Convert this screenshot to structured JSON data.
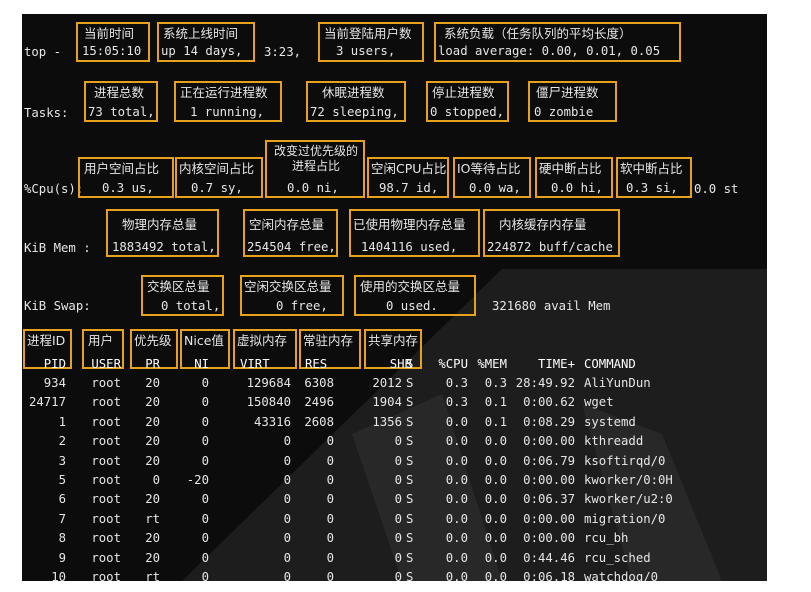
{
  "terminal": {
    "lines": {
      "top": [
        "top -",
        "15:05:10",
        "up 14 days,",
        "3:23,",
        "3 users,",
        "load average: 0.00, 0.01, 0.05"
      ],
      "tasks": [
        "Tasks:",
        "73 total,",
        "1 running,",
        "72 sleeping,",
        "0 stopped,",
        "0 zombie"
      ],
      "cpu": [
        "%Cpu(s):",
        "0.3 us,",
        "0.7 sy,",
        "0.0 ni,",
        "98.7 id,",
        "0.0 wa,",
        "0.0 hi,",
        "0.3 si,",
        "0.0 st"
      ],
      "mem": [
        "KiB Mem :",
        "1883492 total,",
        "254504 free,",
        "1404116 used,",
        "224872 buff/cache"
      ],
      "swap": [
        "KiB Swap:",
        "0 total,",
        "0 free,",
        "0 used.",
        "321680 avail Mem"
      ]
    },
    "annotations": {
      "current_time": "当前时间",
      "uptime": "系统上线时间",
      "users": "当前登陆用户数",
      "load": "系统负载（任务队列的平均长度）",
      "total_proc": "进程总数",
      "running_proc": "正在运行进程数",
      "sleeping_proc": "休眠进程数",
      "stopped_proc": "停止进程数",
      "zombie_proc": "僵尸进程数",
      "us": "用户空间占比",
      "sy": "内核空间占比",
      "ni": "改变过优先级的\n进程占比",
      "id": "空闲CPU占比",
      "wa": "IO等待占比",
      "hi": "硬中断占比",
      "si": "软中断占比",
      "mem_total": "物理内存总量",
      "mem_free": "空闲内存总量",
      "mem_used": "已使用物理内存总量",
      "mem_buff": "内核缓存内存量",
      "swap_total": "交换区总量",
      "swap_free": "空闲交换区总量",
      "swap_used": "使用的交换区总量",
      "col_pid": "进程ID",
      "col_user": "用户",
      "col_pr": "优先级",
      "col_ni": "Nice值",
      "col_virt": "虚拟内存",
      "col_res": "常驻内存",
      "col_shr": "共享内存"
    },
    "table": {
      "headers": [
        "PID",
        "USER",
        "PR",
        "NI",
        "VIRT",
        "RES",
        "SHR",
        "S",
        "%CPU",
        "%MEM",
        "TIME+",
        "COMMAND"
      ],
      "rows": [
        [
          "934",
          "root",
          "20",
          "0",
          "129684",
          "6308",
          "2012",
          "S",
          "0.3",
          "0.3",
          "28:49.92",
          "AliYunDun"
        ],
        [
          "24717",
          "root",
          "20",
          "0",
          "150840",
          "2496",
          "1904",
          "S",
          "0.3",
          "0.1",
          "0:00.62",
          "wget"
        ],
        [
          "1",
          "root",
          "20",
          "0",
          "43316",
          "2608",
          "1356",
          "S",
          "0.0",
          "0.1",
          "0:08.29",
          "systemd"
        ],
        [
          "2",
          "root",
          "20",
          "0",
          "0",
          "0",
          "0",
          "S",
          "0.0",
          "0.0",
          "0:00.00",
          "kthreadd"
        ],
        [
          "3",
          "root",
          "20",
          "0",
          "0",
          "0",
          "0",
          "S",
          "0.0",
          "0.0",
          "0:06.79",
          "ksoftirqd/0"
        ],
        [
          "5",
          "root",
          "0",
          "-20",
          "0",
          "0",
          "0",
          "S",
          "0.0",
          "0.0",
          "0:00.00",
          "kworker/0:0H"
        ],
        [
          "6",
          "root",
          "20",
          "0",
          "0",
          "0",
          "0",
          "S",
          "0.0",
          "0.0",
          "0:06.37",
          "kworker/u2:0"
        ],
        [
          "7",
          "root",
          "rt",
          "0",
          "0",
          "0",
          "0",
          "S",
          "0.0",
          "0.0",
          "0:00.00",
          "migration/0"
        ],
        [
          "8",
          "root",
          "20",
          "0",
          "0",
          "0",
          "0",
          "S",
          "0.0",
          "0.0",
          "0:00.00",
          "rcu_bh"
        ],
        [
          "9",
          "root",
          "20",
          "0",
          "0",
          "0",
          "0",
          "S",
          "0.0",
          "0.0",
          "0:44.46",
          "rcu_sched"
        ],
        [
          "10",
          "root",
          "rt",
          "0",
          "0",
          "0",
          "0",
          "S",
          "0.0",
          "0.0",
          "0:06.18",
          "watchdog/0"
        ]
      ]
    },
    "colors": {
      "background": "#0c0c0c",
      "text": "#e6e6e6",
      "highlight_box": "#e8a11c"
    }
  }
}
